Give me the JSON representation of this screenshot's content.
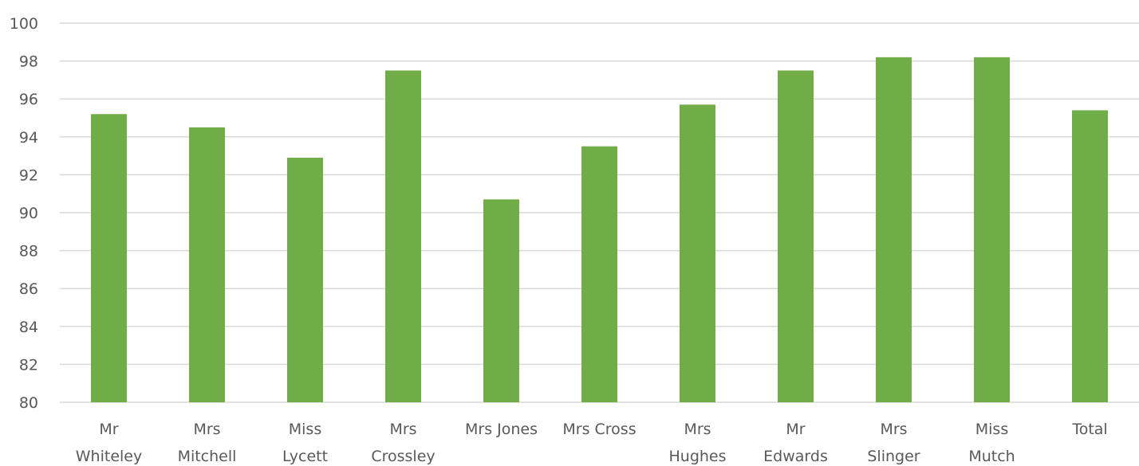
{
  "chart_data": {
    "type": "bar",
    "title": "",
    "xlabel": "",
    "ylabel": "",
    "categories": [
      [
        "Mr",
        "Whiteley"
      ],
      [
        "Mrs",
        "Mitchell"
      ],
      [
        "Miss",
        "Lycett"
      ],
      [
        "Mrs",
        "Crossley"
      ],
      [
        "Mrs Jones"
      ],
      [
        "Mrs Cross"
      ],
      [
        "Mrs",
        "Hughes"
      ],
      [
        "Mr",
        "Edwards"
      ],
      [
        "Mrs",
        "Slinger"
      ],
      [
        "Miss",
        "Mutch"
      ],
      [
        "Total"
      ]
    ],
    "values": [
      95.2,
      94.5,
      92.9,
      97.5,
      90.7,
      93.5,
      95.7,
      97.5,
      98.2,
      98.2,
      95.4
    ],
    "ylim": [
      80,
      100
    ],
    "yticks": [
      80,
      82,
      84,
      86,
      88,
      90,
      92,
      94,
      96,
      98,
      100
    ],
    "grid": true,
    "legend": "none",
    "colors": {
      "bar": "#70ad47",
      "grid": "#d9d9d9",
      "text": "#595959"
    }
  }
}
